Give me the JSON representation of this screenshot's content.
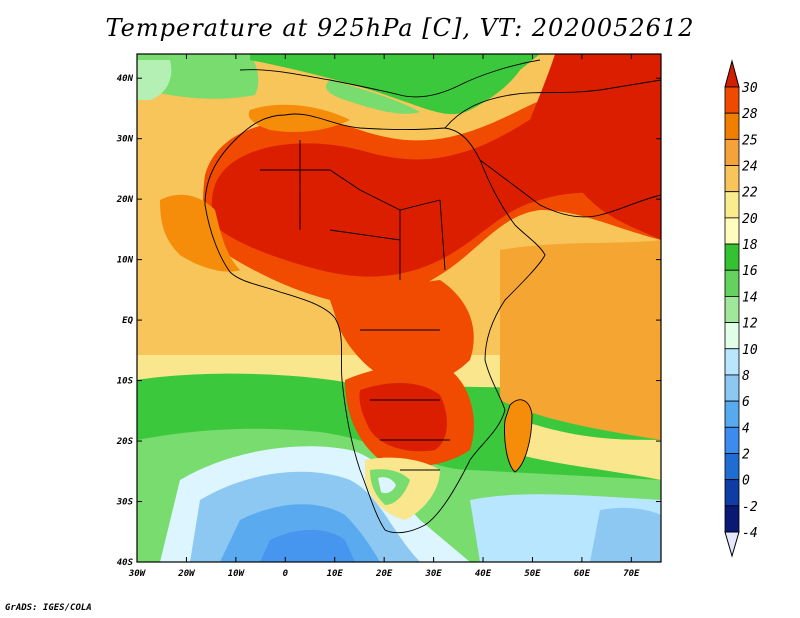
{
  "title": "Temperature at 925hPa [C], VT: 2020052612",
  "footer": "GrADS: IGES/COLA",
  "map": {
    "lon_range": [
      -30,
      76
    ],
    "lat_range": [
      -40,
      44
    ],
    "lon_ticks": [
      {
        "value": -30,
        "label": "30W"
      },
      {
        "value": -20,
        "label": "20W"
      },
      {
        "value": -10,
        "label": "10W"
      },
      {
        "value": 0,
        "label": "0"
      },
      {
        "value": 10,
        "label": "10E"
      },
      {
        "value": 20,
        "label": "20E"
      },
      {
        "value": 30,
        "label": "30E"
      },
      {
        "value": 40,
        "label": "40E"
      },
      {
        "value": 50,
        "label": "50E"
      },
      {
        "value": 60,
        "label": "60E"
      },
      {
        "value": 70,
        "label": "70E"
      }
    ],
    "lat_ticks": [
      {
        "value": 40,
        "label": "40N"
      },
      {
        "value": 30,
        "label": "30N"
      },
      {
        "value": 20,
        "label": "20N"
      },
      {
        "value": 10,
        "label": "10N"
      },
      {
        "value": 0,
        "label": "EQ"
      },
      {
        "value": -10,
        "label": "10S"
      },
      {
        "value": -20,
        "label": "20S"
      },
      {
        "value": -30,
        "label": "30S"
      },
      {
        "value": -40,
        "label": "40S"
      }
    ]
  },
  "colorbar": {
    "levels": [
      "30",
      "28",
      "25",
      "24",
      "22",
      "20",
      "18",
      "16",
      "14",
      "12",
      "10",
      "8",
      "6",
      "4",
      "2",
      "0",
      "-2",
      "-4"
    ],
    "colors": [
      "#d21f00",
      "#f04a00",
      "#f07f00",
      "#f5a23a",
      "#f8c55a",
      "#faeb8c",
      "#fffcbe",
      "#34c232",
      "#64d25f",
      "#a0e69b",
      "#e0ffe6",
      "#b9e6ff",
      "#8cc8f2",
      "#58aaf0",
      "#3c8cf0",
      "#1e6ed2",
      "#0f3ca5",
      "#0a1973"
    ],
    "top_color": "#d21f00",
    "bottom_color": "#e6e6ff"
  },
  "palette": {
    "hot": "#dc1e00",
    "very_warm": "#f04b00",
    "warm": "#f58c0a",
    "orange": "#f5a532",
    "light_orange": "#f8c55a",
    "yellow": "#fae68c",
    "pale_yellow": "#fffcbe",
    "green": "#3cc83c",
    "light_green": "#78dc6e",
    "pale_green": "#b4f0b4",
    "pale_blue": "#dcf5ff",
    "blue": "#8cc8f2",
    "mid_blue": "#5aaaf0",
    "ocean": "#4696f0"
  }
}
